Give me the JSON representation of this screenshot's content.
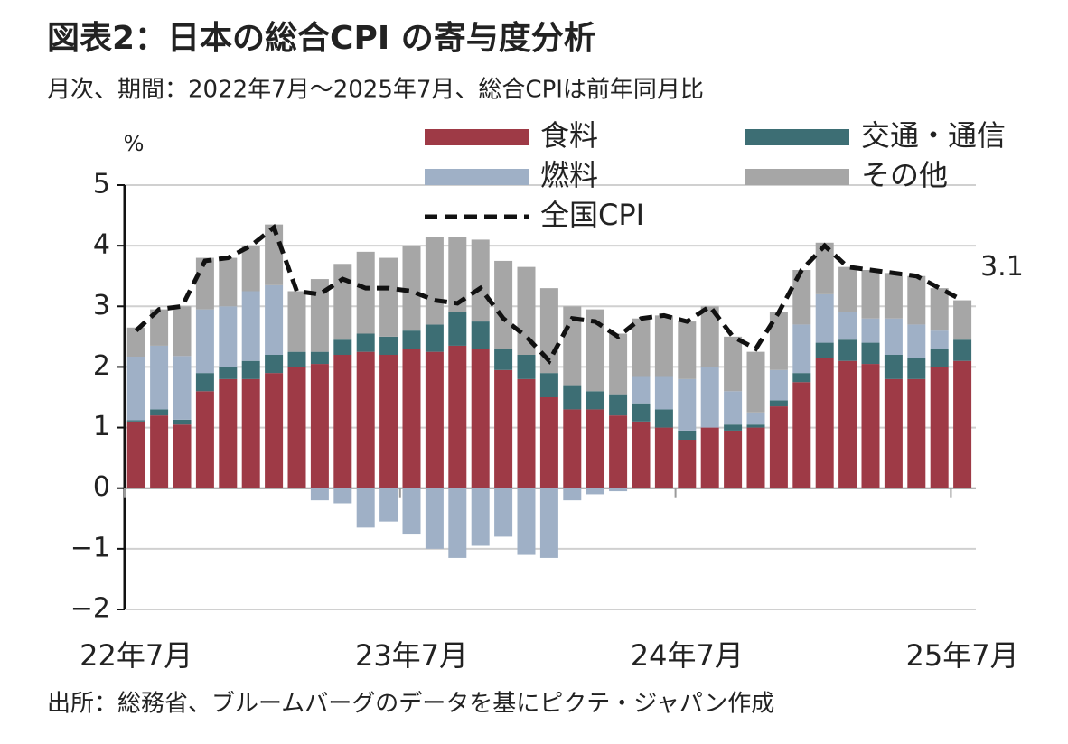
{
  "chart_data": {
    "type": "stacked_bar_line",
    "title": "図表2：日本の総合CPI の寄与度分析",
    "subtitle": "月次、期間：2022年7月～2025年7月、総合CPIは前年同月比",
    "y_label": "%",
    "source": "出所：総務省、ブルームバーグのデータを基にピクテ・ジャパン作成",
    "categories": [
      "22年7月",
      null,
      null,
      null,
      null,
      null,
      null,
      null,
      null,
      null,
      null,
      null,
      "23年7月",
      null,
      null,
      null,
      null,
      null,
      null,
      null,
      null,
      null,
      null,
      null,
      "24年7月",
      null,
      null,
      null,
      null,
      null,
      null,
      null,
      null,
      null,
      null,
      null,
      "25年7月"
    ],
    "ylim": [
      -2,
      5
    ],
    "yticks": [
      {
        "value": -2,
        "label": "−2"
      },
      {
        "value": -1,
        "label": "−1"
      },
      0,
      1,
      2,
      3,
      4,
      5
    ],
    "grid": true,
    "series": [
      {
        "name": "食料",
        "type": "bar",
        "color": "#9e3a46",
        "values": [
          1.1,
          1.2,
          1.05,
          1.6,
          1.8,
          1.8,
          1.9,
          2.0,
          2.05,
          2.2,
          2.25,
          2.2,
          2.3,
          2.25,
          2.35,
          2.3,
          1.95,
          1.8,
          1.5,
          1.3,
          1.3,
          1.2,
          1.1,
          1.0,
          0.8,
          1.0,
          0.95,
          1.0,
          1.35,
          1.75,
          2.15,
          2.1,
          2.05,
          1.8,
          1.8,
          2.0,
          2.1
        ]
      },
      {
        "name": "交通・通信",
        "type": "bar",
        "color": "#3d6e74",
        "values": [
          0.02,
          0.1,
          0.08,
          0.3,
          0.2,
          0.3,
          0.3,
          0.25,
          0.2,
          0.25,
          0.3,
          0.3,
          0.3,
          0.45,
          0.55,
          0.45,
          0.35,
          0.4,
          0.4,
          0.4,
          0.3,
          0.35,
          0.3,
          0.3,
          0.15,
          0.0,
          0.1,
          0.05,
          0.1,
          0.15,
          0.25,
          0.35,
          0.35,
          0.4,
          0.35,
          0.3,
          0.35
        ]
      },
      {
        "name": "燃料",
        "type": "bar",
        "color": "#9fb0c6",
        "values": [
          1.05,
          1.05,
          1.05,
          1.05,
          1.0,
          1.15,
          1.15,
          0.0,
          -0.2,
          -0.25,
          -0.65,
          -0.55,
          -0.75,
          -1.0,
          -1.15,
          -0.95,
          -0.8,
          -1.1,
          -1.15,
          -0.2,
          -0.1,
          -0.05,
          0.45,
          0.55,
          0.85,
          1.0,
          0.55,
          0.2,
          0.5,
          0.8,
          0.8,
          0.45,
          0.4,
          0.6,
          0.55,
          0.3,
          0.0
        ]
      },
      {
        "name": "その他",
        "type": "bar",
        "color": "#a6a6a6",
        "values": [
          0.48,
          0.6,
          0.82,
          0.85,
          0.8,
          0.75,
          1.0,
          1.0,
          1.2,
          1.25,
          1.35,
          1.3,
          1.4,
          1.45,
          1.25,
          1.35,
          1.45,
          1.45,
          1.4,
          1.3,
          1.35,
          1.0,
          0.95,
          1.0,
          0.95,
          1.0,
          0.9,
          1.0,
          0.95,
          0.9,
          0.85,
          0.75,
          0.8,
          0.75,
          0.8,
          0.7,
          0.65
        ]
      },
      {
        "name": "全国CPI",
        "type": "line",
        "color": "#111111",
        "dashed": true,
        "values": [
          2.6,
          2.95,
          3.0,
          3.75,
          3.8,
          4.0,
          4.3,
          3.25,
          3.2,
          3.45,
          3.3,
          3.3,
          3.25,
          3.1,
          3.05,
          3.3,
          2.8,
          2.5,
          2.1,
          2.8,
          2.75,
          2.5,
          2.8,
          2.85,
          2.75,
          3.0,
          2.5,
          2.3,
          2.9,
          3.6,
          4.0,
          3.65,
          3.6,
          3.55,
          3.5,
          3.3,
          3.1
        ]
      }
    ]
  }
}
